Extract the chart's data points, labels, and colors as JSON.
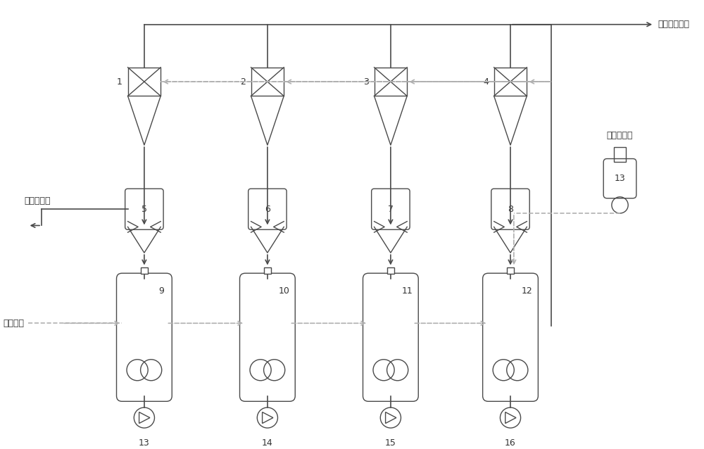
{
  "bg_color": "#ffffff",
  "line_color": "#4a4a4a",
  "dashed_line_color": "#b0b0b0",
  "text_color": "#333333",
  "label_go_filter": "去精密过滤器",
  "label_exhaust_cat": "外排倂化剂",
  "label_fresh_feed": "新鲜物料",
  "label_fresh_cat": "新鲜倂化剂",
  "figsize": [
    10.0,
    6.38
  ]
}
